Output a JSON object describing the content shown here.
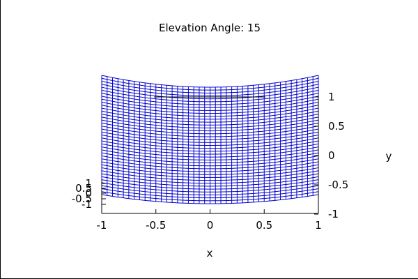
{
  "chart_data": {
    "type": "surface",
    "title": "Elevation Angle: 15",
    "xlabel": "x",
    "ylabel": "y",
    "zlabel": "",
    "x_ticks": [
      "-1",
      "-0.5",
      "0",
      "0.5",
      "1"
    ],
    "y_ticks": [
      "1",
      "0.5",
      "0",
      "-0.5",
      "-1"
    ],
    "z_ticks": [
      "1",
      "0.5",
      "0",
      "-0.5",
      "-1"
    ],
    "xlim": [
      -1,
      1
    ],
    "ylim": [
      -1,
      1
    ],
    "zlim": [
      -1,
      1
    ],
    "elevation_angle": 15,
    "surface": {
      "x_lines": 40,
      "y_lines": 40
    },
    "colors": {
      "surface": "#0000cc",
      "axes": "#000000",
      "background": "#ffffff"
    },
    "legend": "none",
    "grid": false
  }
}
